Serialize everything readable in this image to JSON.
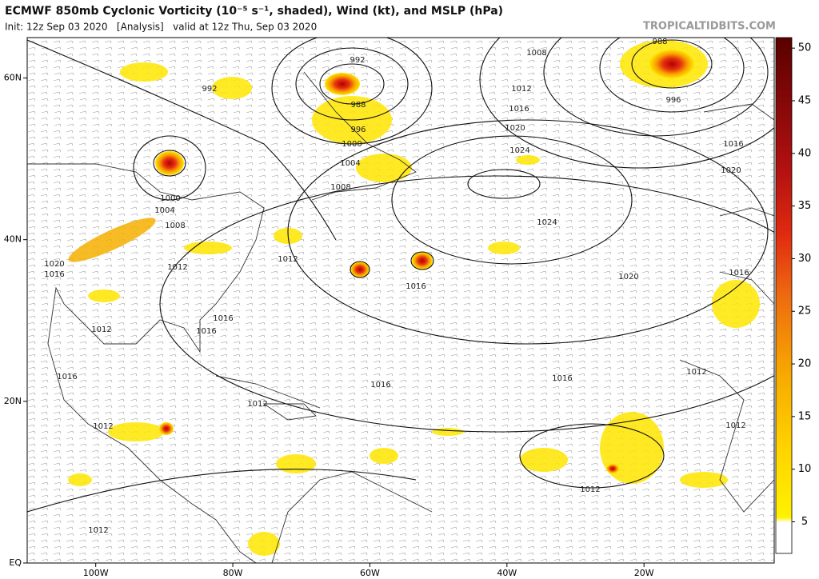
{
  "title": "ECMWF 850mb Cyclonic Vorticity (10⁻⁵ s⁻¹, shaded), Wind (kt), and MSLP (hPa)",
  "subtitle": "Init: 12z Sep 03 2020   [Analysis]   valid at 12z Thu, Sep 03 2020",
  "watermark": "TROPICALTIDBITS.COM",
  "map": {
    "xlim": [
      -110,
      -1
    ],
    "ylim": [
      0,
      65
    ],
    "xticks": [
      {
        "value": -100,
        "label": "100W"
      },
      {
        "value": -80,
        "label": "80W"
      },
      {
        "value": -60,
        "label": "60W"
      },
      {
        "value": -40,
        "label": "40W"
      },
      {
        "value": -20,
        "label": "20W"
      }
    ],
    "yticks": [
      {
        "value": 60,
        "label": "60N"
      },
      {
        "value": 40,
        "label": "40N"
      },
      {
        "value": 20,
        "label": "20N"
      },
      {
        "value": 0,
        "label": "EQ"
      }
    ],
    "isobar_labels": [
      992,
      992,
      1008,
      988,
      1012,
      1016,
      1020,
      1024,
      996,
      1016,
      1020,
      1024,
      988,
      996,
      1000,
      1004,
      1008,
      1000,
      1004,
      1008,
      1012,
      1012,
      1020,
      1016,
      1016,
      1020,
      1016,
      1012,
      1016,
      1016,
      1016,
      1016,
      1016,
      1012,
      1012,
      1012,
      1012,
      1012,
      1012
    ]
  },
  "colorbar": {
    "lim": [
      2,
      51
    ],
    "ticks": [
      5,
      10,
      15,
      20,
      25,
      30,
      35,
      40,
      45,
      50
    ]
  }
}
